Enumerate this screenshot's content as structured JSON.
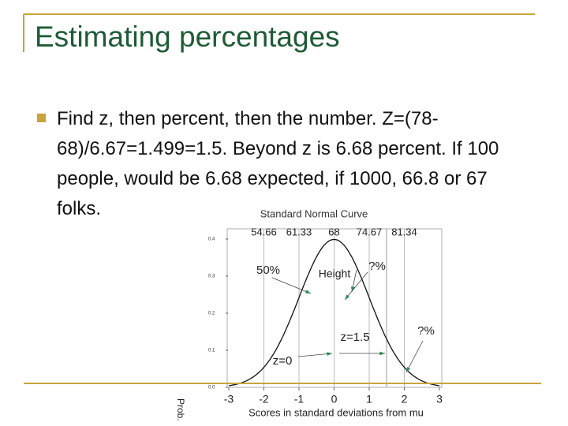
{
  "title": "Estimating percentages",
  "bullets": [
    "Find z, then percent, then the number. Z=(78-68)/6.67=1.499=1.5.  Beyond z is 6.68 percent.  If 100 people, would be 6.68 expected, if 1000, 66.8 or 67 folks."
  ],
  "figure": {
    "title": "Standard Normal Curve",
    "top_labels": [
      "54.66",
      "61.33",
      "68",
      "74.67",
      "81.34"
    ],
    "xticks": [
      -3,
      -2,
      -1,
      0,
      1,
      2,
      3
    ],
    "yticks": [
      {
        "value": 0,
        "label": "0.0"
      },
      {
        "value": 0.1,
        "label": "0.1"
      },
      {
        "value": 0.2,
        "label": "0.2"
      },
      {
        "value": 0.3,
        "label": "0.3"
      },
      {
        "value": 0.4,
        "label": "0.4"
      }
    ],
    "xlabel": "Scores in standard deviations from mu",
    "ylabel": "Prob.",
    "annotations": [
      "50%",
      "Height",
      "?%",
      "z=1.5",
      "?%",
      "z=0"
    ]
  }
}
